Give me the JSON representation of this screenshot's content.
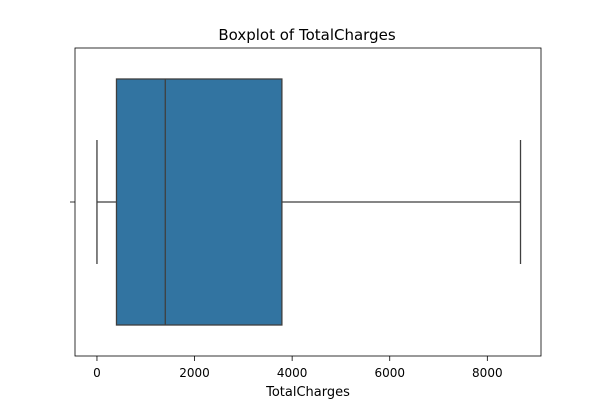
{
  "chart_data": {
    "type": "boxplot",
    "title": "Boxplot of TotalCharges",
    "xlabel": "TotalCharges",
    "ylabel": "",
    "xlim": [
      -450,
      9100
    ],
    "xticks": [
      0,
      2000,
      4000,
      6000,
      8000
    ],
    "grid": false,
    "legend": "none",
    "series": [
      {
        "whisker_low": 0,
        "q1": 400,
        "median": 1400,
        "q3": 3790,
        "whisker_high": 8680,
        "color": "#3274a1"
      }
    ]
  }
}
